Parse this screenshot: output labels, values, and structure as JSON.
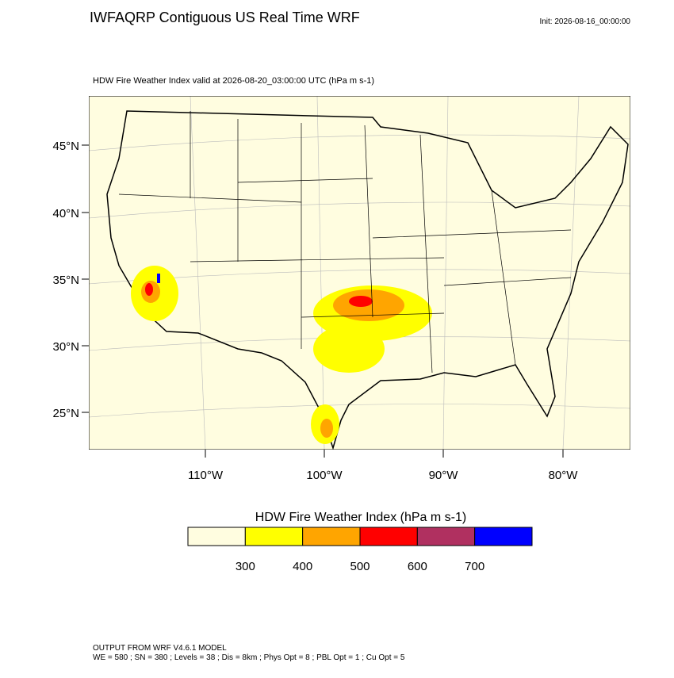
{
  "header": {
    "title": "IWFAQRP Contiguous US Real Time WRF",
    "init": "Init: 2026-08-16_00:00:00"
  },
  "map": {
    "subtitle": "HDW Fire Weather Index valid at 2026-08-20_03:00:00 UTC   (hPa m s-1)",
    "lat_labels": [
      "45°N",
      "40°N",
      "35°N",
      "30°N",
      "25°N"
    ],
    "lon_labels": [
      "110°W",
      "100°W",
      "90°W",
      "80°W"
    ]
  },
  "legend": {
    "title": "HDW Fire Weather Index (hPa m s-1)",
    "colors": [
      "#fffde0",
      "#ffff00",
      "#ffa500",
      "#ff0000",
      "#b03060",
      "#0000ff"
    ],
    "ticks": [
      300,
      400,
      500,
      600,
      700
    ]
  },
  "footer": {
    "lines": [
      "OUTPUT FROM WRF V4.6.1 MODEL",
      "WE = 580 ; SN = 380 ; Levels = 38 ; Dis = 8km ; Phys Opt = 8 ; PBL Opt = 1 ; Cu Opt = 5"
    ]
  }
}
